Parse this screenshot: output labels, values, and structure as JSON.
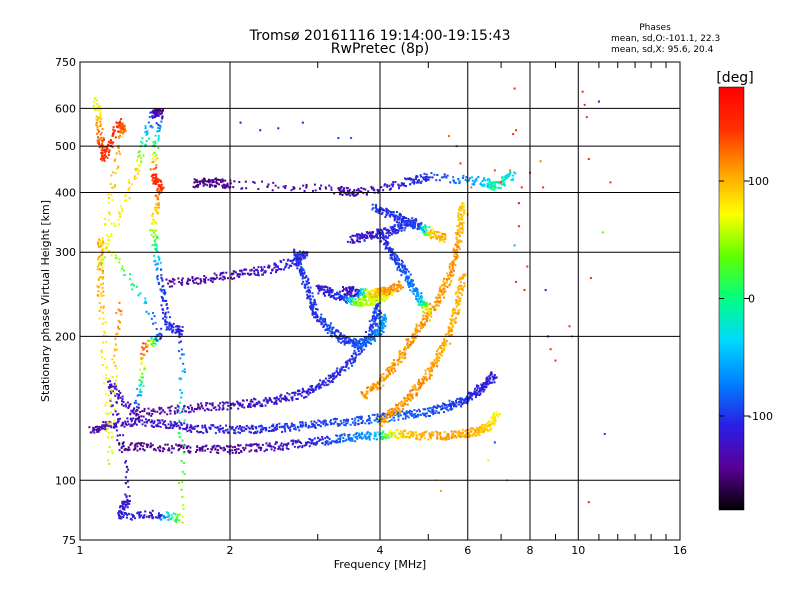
{
  "chart_data": {
    "type": "scatter",
    "title": "Tromsø 20161116 19:14:00-19:15:43",
    "subtitle": "RwPretec (8p)",
    "stats": {
      "heading": "Phases",
      "line1": "mean, sd,O:-101.1, 22.3",
      "line2": "mean, sd,X:  95.6, 20.4"
    },
    "xlabel": "Frequency [MHz]",
    "ylabel": "Stationary phase Virtual Height [km]",
    "x_scale": "log",
    "y_scale": "log",
    "xlim": [
      1,
      16
    ],
    "ylim": [
      75,
      750
    ],
    "x_ticks": [
      1,
      2,
      4,
      6,
      8,
      10,
      16
    ],
    "x_tick_labels": [
      "1",
      "2",
      "4",
      "6",
      "8",
      "10",
      "16"
    ],
    "x_minor_ticks": [
      3,
      5,
      7,
      9,
      11,
      12,
      13,
      14,
      15
    ],
    "y_ticks": [
      75,
      100,
      200,
      300,
      400,
      500,
      600,
      750
    ],
    "y_tick_labels": [
      "75",
      "100",
      "200",
      "300",
      "400",
      "500",
      "600",
      "750"
    ],
    "grid": true,
    "colorbar": {
      "label": "[deg]",
      "min": -180,
      "max": 180,
      "ticks": [
        100,
        0,
        -100
      ],
      "tick_labels": [
        "100",
        "0",
        "-100"
      ],
      "colormap": [
        "#000000",
        "#5a0096",
        "#2a1ee6",
        "#0080ff",
        "#00d8ff",
        "#00ff80",
        "#60ff00",
        "#ffff00",
        "#ffa000",
        "#ff3000",
        "#ff0000"
      ]
    },
    "series": [
      {
        "values": [
          [
            1.05,
            127,
            -140
          ],
          [
            1.15,
            131,
            -130
          ],
          [
            1.3,
            133,
            -120
          ],
          [
            1.5,
            131,
            -120
          ],
          [
            1.7,
            128,
            -115
          ],
          [
            2.0,
            128,
            -110
          ],
          [
            2.3,
            128,
            -105
          ],
          [
            2.6,
            129,
            -100
          ],
          [
            3.0,
            131,
            -95
          ],
          [
            3.5,
            133,
            -90
          ],
          [
            4.0,
            135,
            -85
          ],
          [
            4.5,
            137,
            -85
          ],
          [
            5.0,
            139,
            -90
          ],
          [
            5.5,
            143,
            -95
          ],
          [
            5.9,
            147,
            -100
          ],
          [
            6.2,
            152,
            -110
          ],
          [
            6.5,
            158,
            -115
          ],
          [
            6.8,
            166,
            -110
          ]
        ]
      },
      {
        "values": [
          [
            1.2,
            118,
            -150
          ],
          [
            1.4,
            117,
            -145
          ],
          [
            1.7,
            116,
            -140
          ],
          [
            2.0,
            116,
            -135
          ],
          [
            2.3,
            117,
            -130
          ],
          [
            2.7,
            119,
            -120
          ],
          [
            3.1,
            121,
            -100
          ],
          [
            3.5,
            123,
            -80
          ],
          [
            3.9,
            124,
            -60
          ],
          [
            4.3,
            125,
            90
          ],
          [
            4.8,
            124,
            100
          ],
          [
            5.4,
            124,
            110
          ],
          [
            5.9,
            125,
            105
          ],
          [
            6.3,
            127,
            100
          ],
          [
            6.6,
            130,
            90
          ],
          [
            6.9,
            137,
            70
          ]
        ]
      },
      {
        "values": [
          [
            1.3,
            138,
            -140
          ],
          [
            1.6,
            141,
            -135
          ],
          [
            1.9,
            143,
            -130
          ],
          [
            2.2,
            145,
            -125
          ],
          [
            2.5,
            147,
            -120
          ],
          [
            2.8,
            152,
            -115
          ],
          [
            3.1,
            160,
            -110
          ],
          [
            3.4,
            172,
            -105
          ],
          [
            3.7,
            190,
            -100
          ],
          [
            3.9,
            215,
            -95
          ],
          [
            4.0,
            235,
            -95
          ]
        ]
      },
      {
        "values": [
          [
            1.5,
            258,
            -140
          ],
          [
            1.8,
            264,
            -135
          ],
          [
            2.1,
            270,
            -130
          ],
          [
            2.4,
            276,
            -120
          ],
          [
            2.7,
            288,
            -110
          ],
          [
            2.85,
            300,
            -105
          ]
        ]
      },
      {
        "values": [
          [
            2.7,
            300,
            -100
          ],
          [
            2.8,
            270,
            -100
          ],
          [
            2.9,
            240,
            -100
          ],
          [
            3.0,
            220,
            -100
          ],
          [
            3.2,
            205,
            -95
          ],
          [
            3.4,
            197,
            -100
          ],
          [
            3.6,
            192,
            -90
          ],
          [
            3.8,
            196,
            -80
          ],
          [
            4.0,
            205,
            -70
          ],
          [
            4.1,
            220,
            -60
          ]
        ]
      },
      {
        "values": [
          [
            3.0,
            252,
            -120
          ],
          [
            3.2,
            246,
            -110
          ],
          [
            3.4,
            240,
            -100
          ],
          [
            3.6,
            236,
            40
          ],
          [
            3.8,
            237,
            60
          ],
          [
            4.0,
            240,
            60
          ],
          [
            4.2,
            246,
            70
          ]
        ]
      },
      {
        "values": [
          [
            3.4,
            250,
            -130
          ],
          [
            3.6,
            247,
            -120
          ],
          [
            3.8,
            246,
            80
          ],
          [
            4.0,
            247,
            100
          ],
          [
            4.2,
            250,
            110
          ],
          [
            4.4,
            256,
            110
          ]
        ]
      },
      {
        "values": [
          [
            3.7,
            150,
            110
          ],
          [
            4.0,
            160,
            110
          ],
          [
            4.3,
            175,
            110
          ],
          [
            4.6,
            195,
            110
          ],
          [
            4.9,
            215,
            110
          ],
          [
            5.2,
            235,
            110
          ],
          [
            5.5,
            265,
            110
          ],
          [
            5.7,
            300,
            110
          ],
          [
            5.8,
            340,
            100
          ],
          [
            5.85,
            380,
            90
          ]
        ]
      },
      {
        "values": [
          [
            4.0,
            132,
            105
          ],
          [
            4.3,
            140,
            110
          ],
          [
            4.6,
            150,
            110
          ],
          [
            4.9,
            162,
            110
          ],
          [
            5.2,
            178,
            105
          ],
          [
            5.5,
            200,
            105
          ],
          [
            5.7,
            230,
            100
          ],
          [
            5.9,
            270,
            100
          ]
        ]
      },
      {
        "values": [
          [
            4.0,
            330,
            -100
          ],
          [
            4.2,
            300,
            -100
          ],
          [
            4.4,
            280,
            -90
          ],
          [
            4.6,
            260,
            -80
          ],
          [
            4.8,
            240,
            -60
          ],
          [
            5.0,
            225,
            90
          ]
        ]
      },
      {
        "values": [
          [
            3.9,
            372,
            -100
          ],
          [
            4.2,
            360,
            -100
          ],
          [
            4.5,
            348,
            -100
          ],
          [
            4.8,
            338,
            -100
          ],
          [
            5.1,
            328,
            100
          ],
          [
            5.4,
            320,
            100
          ]
        ]
      },
      {
        "values": [
          [
            3.5,
            318,
            -120
          ],
          [
            3.8,
            324,
            -120
          ],
          [
            4.1,
            330,
            -110
          ],
          [
            4.4,
            338,
            -100
          ],
          [
            4.7,
            350,
            -100
          ]
        ]
      },
      {
        "values": [
          [
            1.7,
            418,
            -150
          ],
          [
            1.85,
            420,
            -145
          ],
          [
            2.0,
            416,
            -140
          ],
          [
            3.3,
            405,
            -130
          ],
          [
            3.6,
            400,
            -130
          ],
          [
            4.5,
            420,
            -110
          ],
          [
            5.0,
            432,
            -100
          ],
          [
            6.4,
            422,
            -50
          ],
          [
            6.8,
            412,
            0
          ],
          [
            7.4,
            434,
            -40
          ]
        ]
      },
      {
        "values": [
          [
            1.08,
            620,
            60
          ],
          [
            1.1,
            520,
            130
          ],
          [
            1.12,
            470,
            150
          ],
          [
            1.2,
            560,
            150
          ],
          [
            1.22,
            540,
            120
          ],
          [
            1.1,
            280,
            60
          ],
          [
            1.3,
            440,
            90
          ],
          [
            1.4,
            585,
            -110
          ],
          [
            1.45,
            590,
            -150
          ],
          [
            1.4,
            435,
            150
          ],
          [
            1.45,
            410,
            150
          ],
          [
            1.4,
            338,
            60
          ],
          [
            1.45,
            260,
            -100
          ],
          [
            1.5,
            210,
            -100
          ],
          [
            1.6,
            205,
            -110
          ],
          [
            1.6,
            83,
            60
          ],
          [
            1.42,
            85,
            -120
          ],
          [
            1.2,
            84,
            -110
          ],
          [
            1.25,
            92,
            -120
          ],
          [
            1.15,
            160,
            -120
          ],
          [
            1.3,
            135,
            -140
          ],
          [
            1.35,
            190,
            150
          ],
          [
            1.45,
            200,
            -110
          ],
          [
            1.1,
            320,
            110
          ],
          [
            1.1,
            240,
            100
          ],
          [
            1.15,
            110,
            60
          ],
          [
            1.2,
            235,
            120
          ]
        ]
      },
      {
        "values": [
          [
            2.1,
            560,
            -130
          ],
          [
            2.3,
            540,
            -120
          ],
          [
            2.5,
            545,
            -110
          ],
          [
            2.8,
            560,
            -120
          ],
          [
            3.3,
            520,
            -100
          ],
          [
            3.5,
            520,
            -90
          ],
          [
            5.5,
            525,
            130
          ],
          [
            5.7,
            500,
            150
          ],
          [
            5.8,
            460,
            150
          ],
          [
            6.0,
            360,
            120
          ],
          [
            6.1,
            410,
            130
          ],
          [
            6.8,
            445,
            140
          ],
          [
            7.0,
            420,
            140
          ],
          [
            7.3,
            445,
            120
          ],
          [
            7.4,
            530,
            150
          ],
          [
            7.45,
            660,
            150
          ],
          [
            7.5,
            540,
            150
          ],
          [
            7.45,
            310,
            -50
          ],
          [
            7.5,
            260,
            150
          ],
          [
            7.6,
            340,
            160
          ],
          [
            7.6,
            380,
            170
          ],
          [
            7.7,
            410,
            150
          ],
          [
            7.8,
            250,
            150
          ],
          [
            7.9,
            280,
            150
          ],
          [
            8.0,
            440,
            150
          ],
          [
            8.4,
            465,
            120
          ],
          [
            8.5,
            410,
            150
          ],
          [
            8.6,
            250,
            -120
          ],
          [
            8.7,
            200,
            -120
          ],
          [
            8.8,
            188,
            150
          ],
          [
            9.0,
            178,
            150
          ],
          [
            9.6,
            210,
            150
          ],
          [
            10.2,
            650,
            150
          ],
          [
            10.3,
            610,
            150
          ],
          [
            10.4,
            575,
            150
          ],
          [
            10.5,
            470,
            150
          ],
          [
            10.6,
            265,
            150
          ],
          [
            10.5,
            90,
            150
          ],
          [
            11.0,
            620,
            -130
          ],
          [
            11.2,
            330,
            30
          ],
          [
            11.3,
            125,
            -100
          ],
          [
            11.6,
            420,
            150
          ],
          [
            6.8,
            120,
            -100
          ],
          [
            6.6,
            110,
            60
          ],
          [
            7.2,
            100,
            110
          ],
          [
            5.3,
            95,
            110
          ],
          [
            5.2,
            100,
            60
          ],
          [
            9.7,
            200,
            140
          ]
        ]
      }
    ]
  }
}
